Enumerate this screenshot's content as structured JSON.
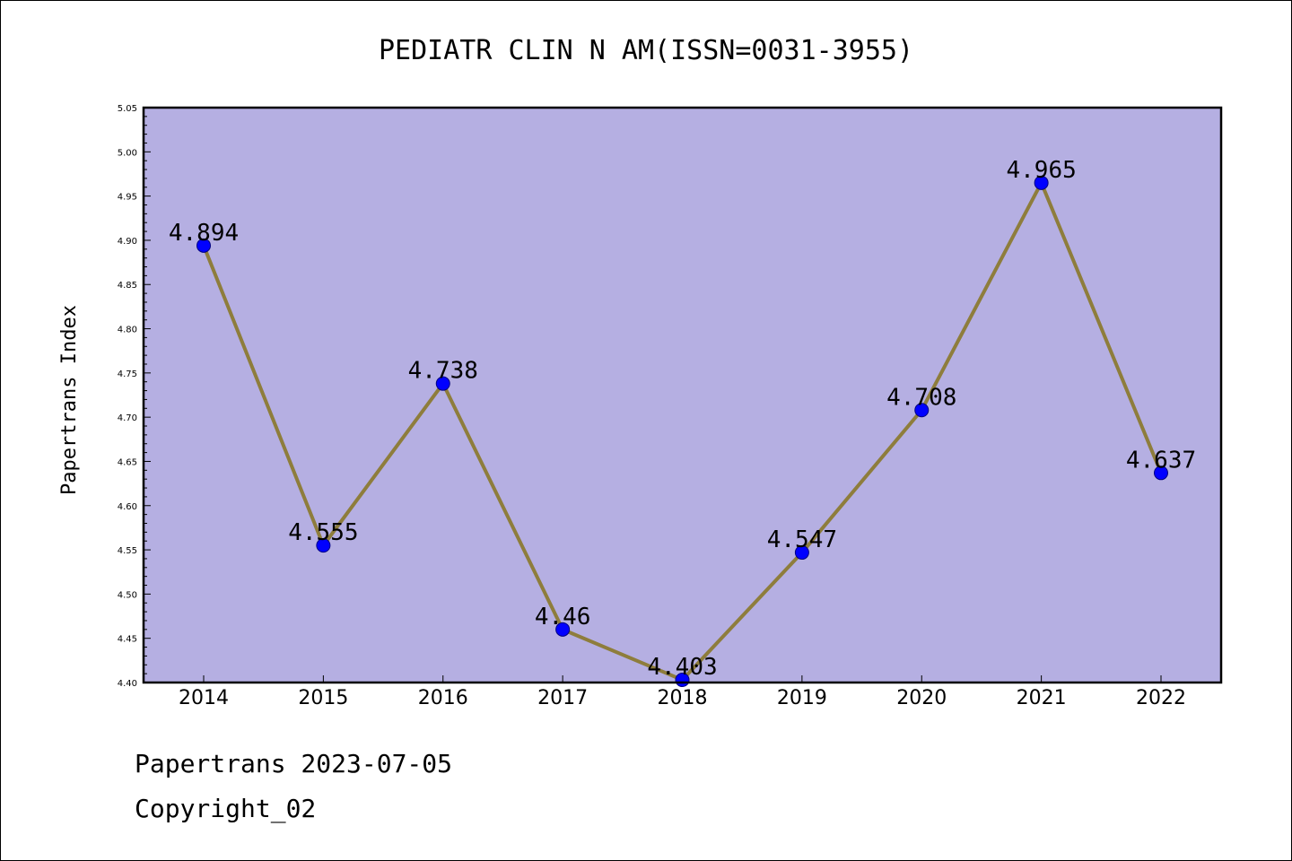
{
  "footer": {
    "line1": "Papertrans 2023-07-05",
    "line2": "Copyright_02"
  },
  "chart_data": {
    "type": "line",
    "title": "PEDIATR CLIN N AM(ISSN=0031-3955)",
    "xlabel": "",
    "ylabel": "Papertrans Index",
    "categories": [
      "2014",
      "2015",
      "2016",
      "2017",
      "2018",
      "2019",
      "2020",
      "2021",
      "2022"
    ],
    "values": [
      4.894,
      4.555,
      4.738,
      4.46,
      4.403,
      4.547,
      4.708,
      4.965,
      4.637
    ],
    "data_labels": [
      "4.894",
      "4.555",
      "4.738",
      "4.46",
      "4.403",
      "4.547",
      "4.708",
      "4.965",
      "4.637"
    ],
    "ylim": [
      4.4,
      5.05
    ],
    "yticks": [
      "4.40",
      "4.45",
      "4.50",
      "4.55",
      "4.60",
      "4.65",
      "4.70",
      "4.75",
      "4.80",
      "4.85",
      "4.90",
      "4.95",
      "5.00",
      "5.05"
    ],
    "grid": false,
    "colors": {
      "plot_background": "#b5afe2",
      "line": "#8e7d3c",
      "marker": "#0000ff",
      "marker_edge": "#000080"
    }
  }
}
